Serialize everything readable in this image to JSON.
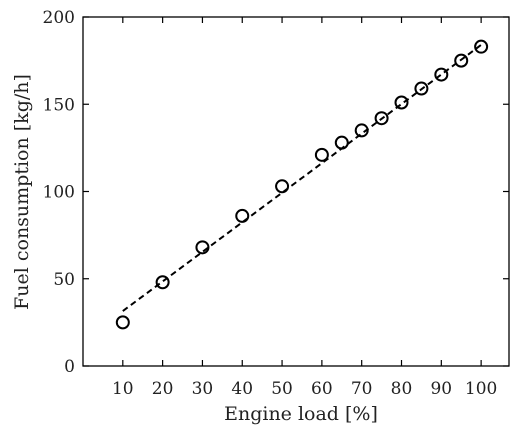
{
  "chart_data": {
    "type": "scatter",
    "title": "",
    "xlabel": "Engine load [%]",
    "ylabel": "Fuel consumption [kg/h]",
    "xlim": [
      0,
      107
    ],
    "ylim": [
      0,
      200
    ],
    "x_ticks": [
      10,
      20,
      30,
      40,
      50,
      60,
      70,
      80,
      90,
      100
    ],
    "y_ticks": [
      0,
      50,
      100,
      150,
      200
    ],
    "grid": false,
    "legend": "none",
    "series": [
      {
        "marker": "open-circle",
        "x": [
          10,
          20,
          30,
          40,
          50,
          60,
          65,
          70,
          75,
          80,
          85,
          90,
          95,
          100
        ],
        "y": [
          25,
          48,
          68,
          86,
          103,
          121,
          128,
          135,
          142,
          151,
          159,
          167,
          175,
          183
        ]
      }
    ],
    "fit_line": {
      "style": "dashed",
      "x": [
        10,
        100
      ],
      "y": [
        31.5,
        184
      ]
    },
    "colors": {
      "marker": "#000000",
      "line": "#000000",
      "axis": "#000000"
    }
  }
}
